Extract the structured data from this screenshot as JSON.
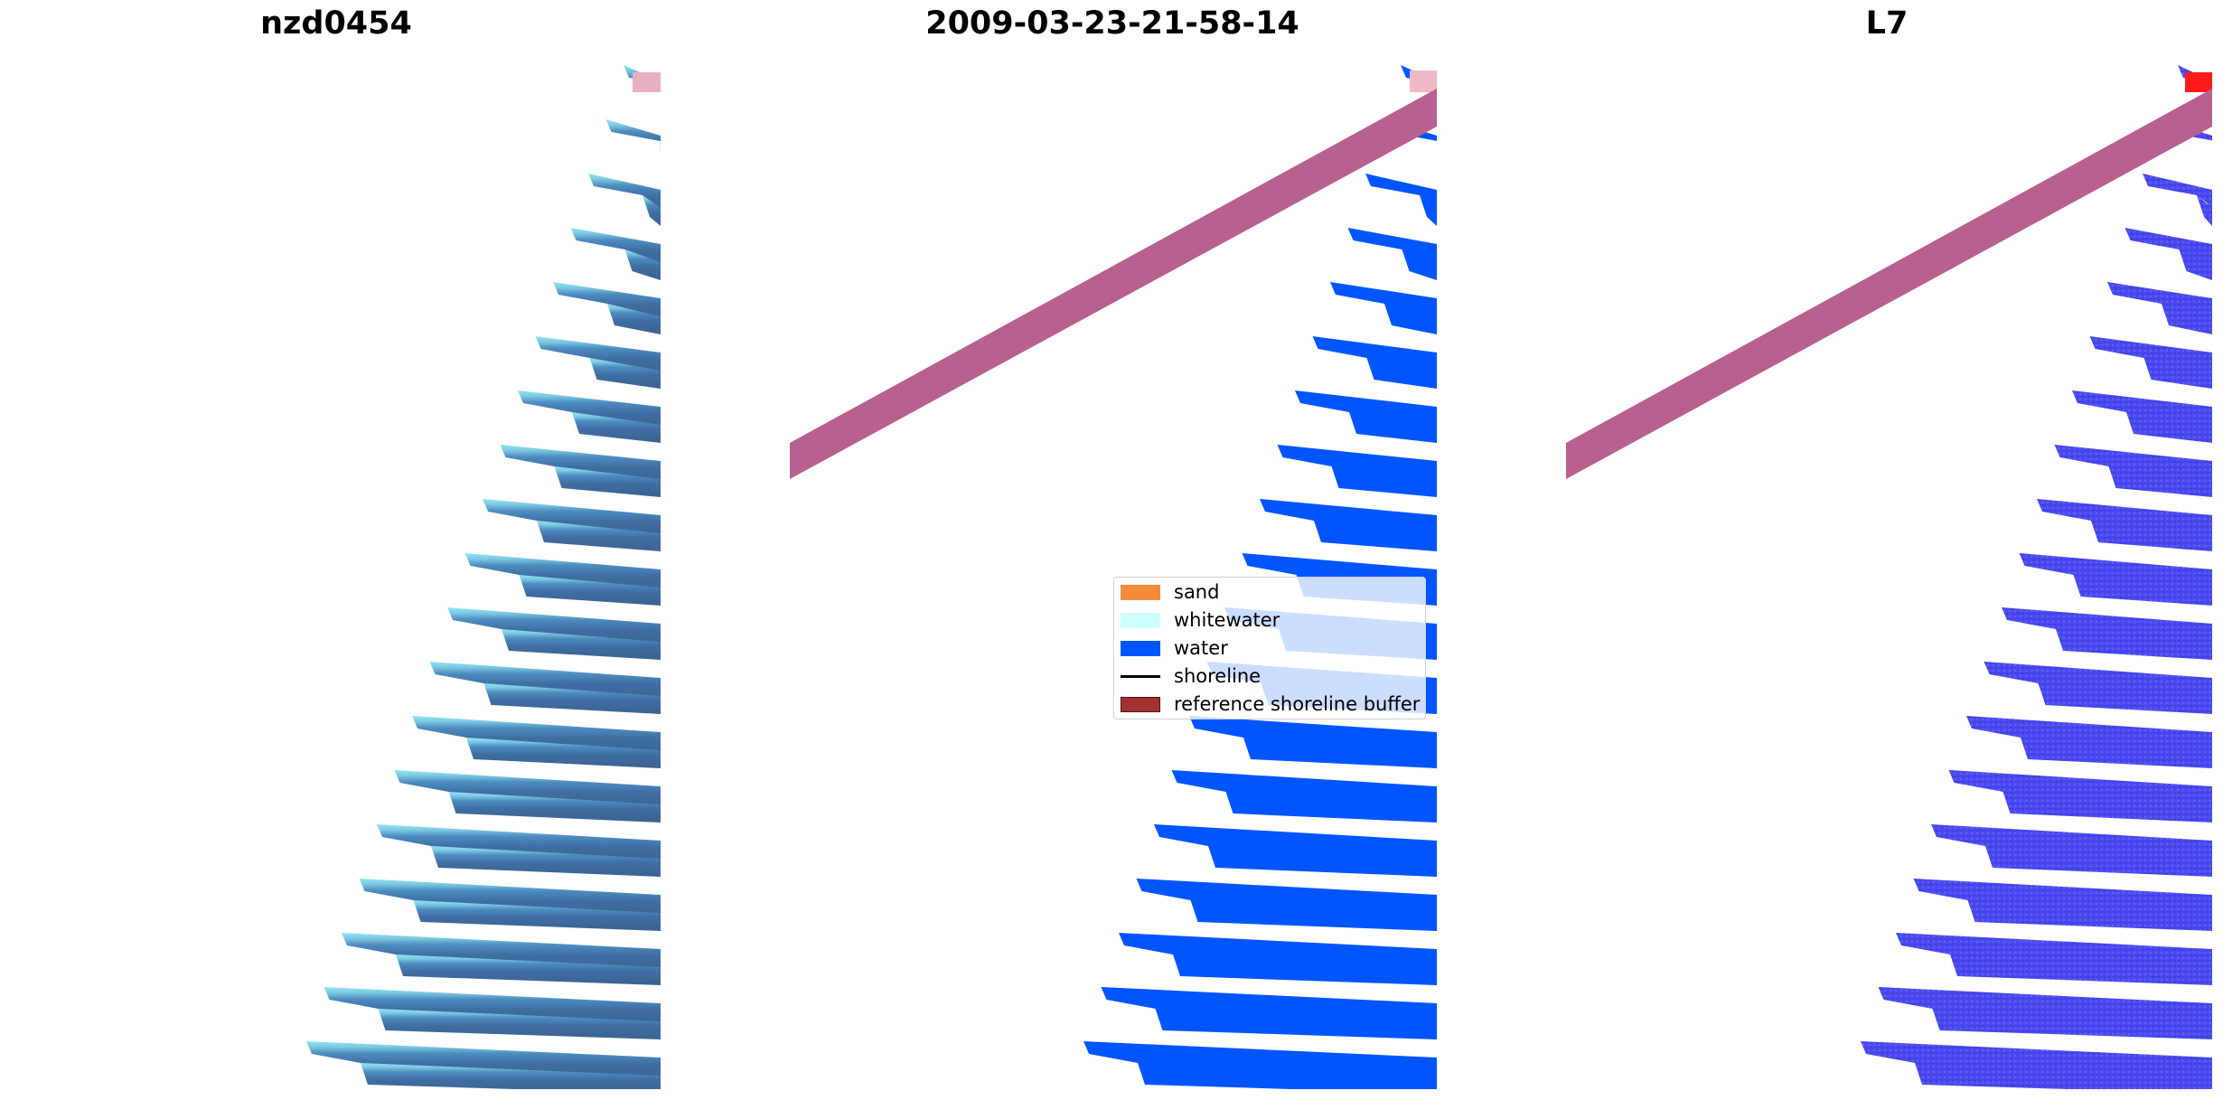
{
  "titles": {
    "left": "nzd0454",
    "middle": "2009-03-23-21-58-14",
    "right": "L7"
  },
  "legend": {
    "items": [
      {
        "label": "sand",
        "kind": "patch",
        "color": "#f28c3c",
        "edge": "#f28c3c"
      },
      {
        "label": "whitewater",
        "kind": "patch",
        "color": "#ccffff",
        "edge": "#ccffff"
      },
      {
        "label": "water",
        "kind": "patch",
        "color": "#0055ff",
        "edge": "#0055ff"
      },
      {
        "label": "shoreline",
        "kind": "line",
        "color": "#000000"
      },
      {
        "label": "reference shoreline buffer",
        "kind": "patch",
        "color": "#a03232",
        "edge": "#5a0f0f"
      }
    ]
  },
  "colors": {
    "rgb_dark": "#3d6496",
    "rgb_light": "#8fe6f5",
    "rgb_pink": "#e8b0be",
    "class_water": "#0055ff",
    "class_red": "#ff1a1a",
    "class_pink": "#f0b9c6",
    "buffer": "#b8608f",
    "probability": "#4a4af0"
  }
}
